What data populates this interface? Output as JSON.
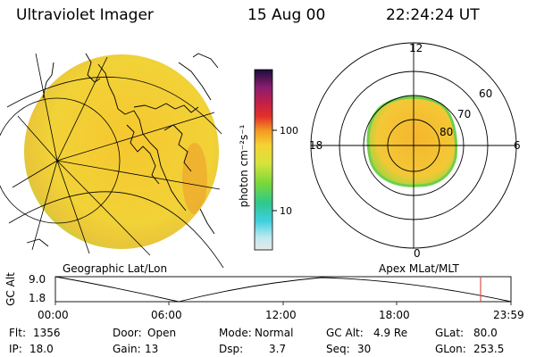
{
  "header": {
    "instrument": "Ultraviolet Imager",
    "date": "15 Aug 00",
    "time": "22:24:24 UT"
  },
  "colorbar": {
    "unit_label": "photon cm⁻²s⁻¹",
    "ticks": [
      "100",
      "10"
    ]
  },
  "polar": {
    "clock_labels": {
      "top": "12",
      "left": "18",
      "right": "6",
      "bottom": "0"
    },
    "lat_labels": [
      "60",
      "70",
      "80"
    ]
  },
  "panel_titles": {
    "left": "Geographic Lat/Lon",
    "right": "Apex  MLat/MLT"
  },
  "altitude_plot": {
    "axis_label": "GC Alt",
    "y_ticks": [
      "9.0",
      "1.8"
    ],
    "time_ticks": [
      "00:00",
      "06:00",
      "12:00",
      "18:00",
      "23:59"
    ],
    "current_marker_hour": 22.4
  },
  "info": {
    "flt_label": "Flt:",
    "flt_value": "1356",
    "ip_label": "IP:",
    "ip_value": "18.0",
    "door_label": "Door:",
    "door_value": "Open",
    "gain_label": "Gain:",
    "gain_value": "13",
    "mode_label": "Mode:",
    "mode_value": "Normal",
    "dsp_label": "Dsp:",
    "dsp_value": "3.7",
    "gcalt_label": "GC Alt:",
    "gcalt_value": "4.9 Re",
    "seq_label": "Seq:",
    "seq_value": "30",
    "glat_label": "GLat:",
    "glat_value": "80.0",
    "glon_label": "GLon:",
    "glon_value": "253.5"
  },
  "colors": {
    "disk_main": "#f6d233",
    "disk_edge": "#9bd23c",
    "disk_hot": "#ef8c1f",
    "marker": "#d9534f"
  }
}
